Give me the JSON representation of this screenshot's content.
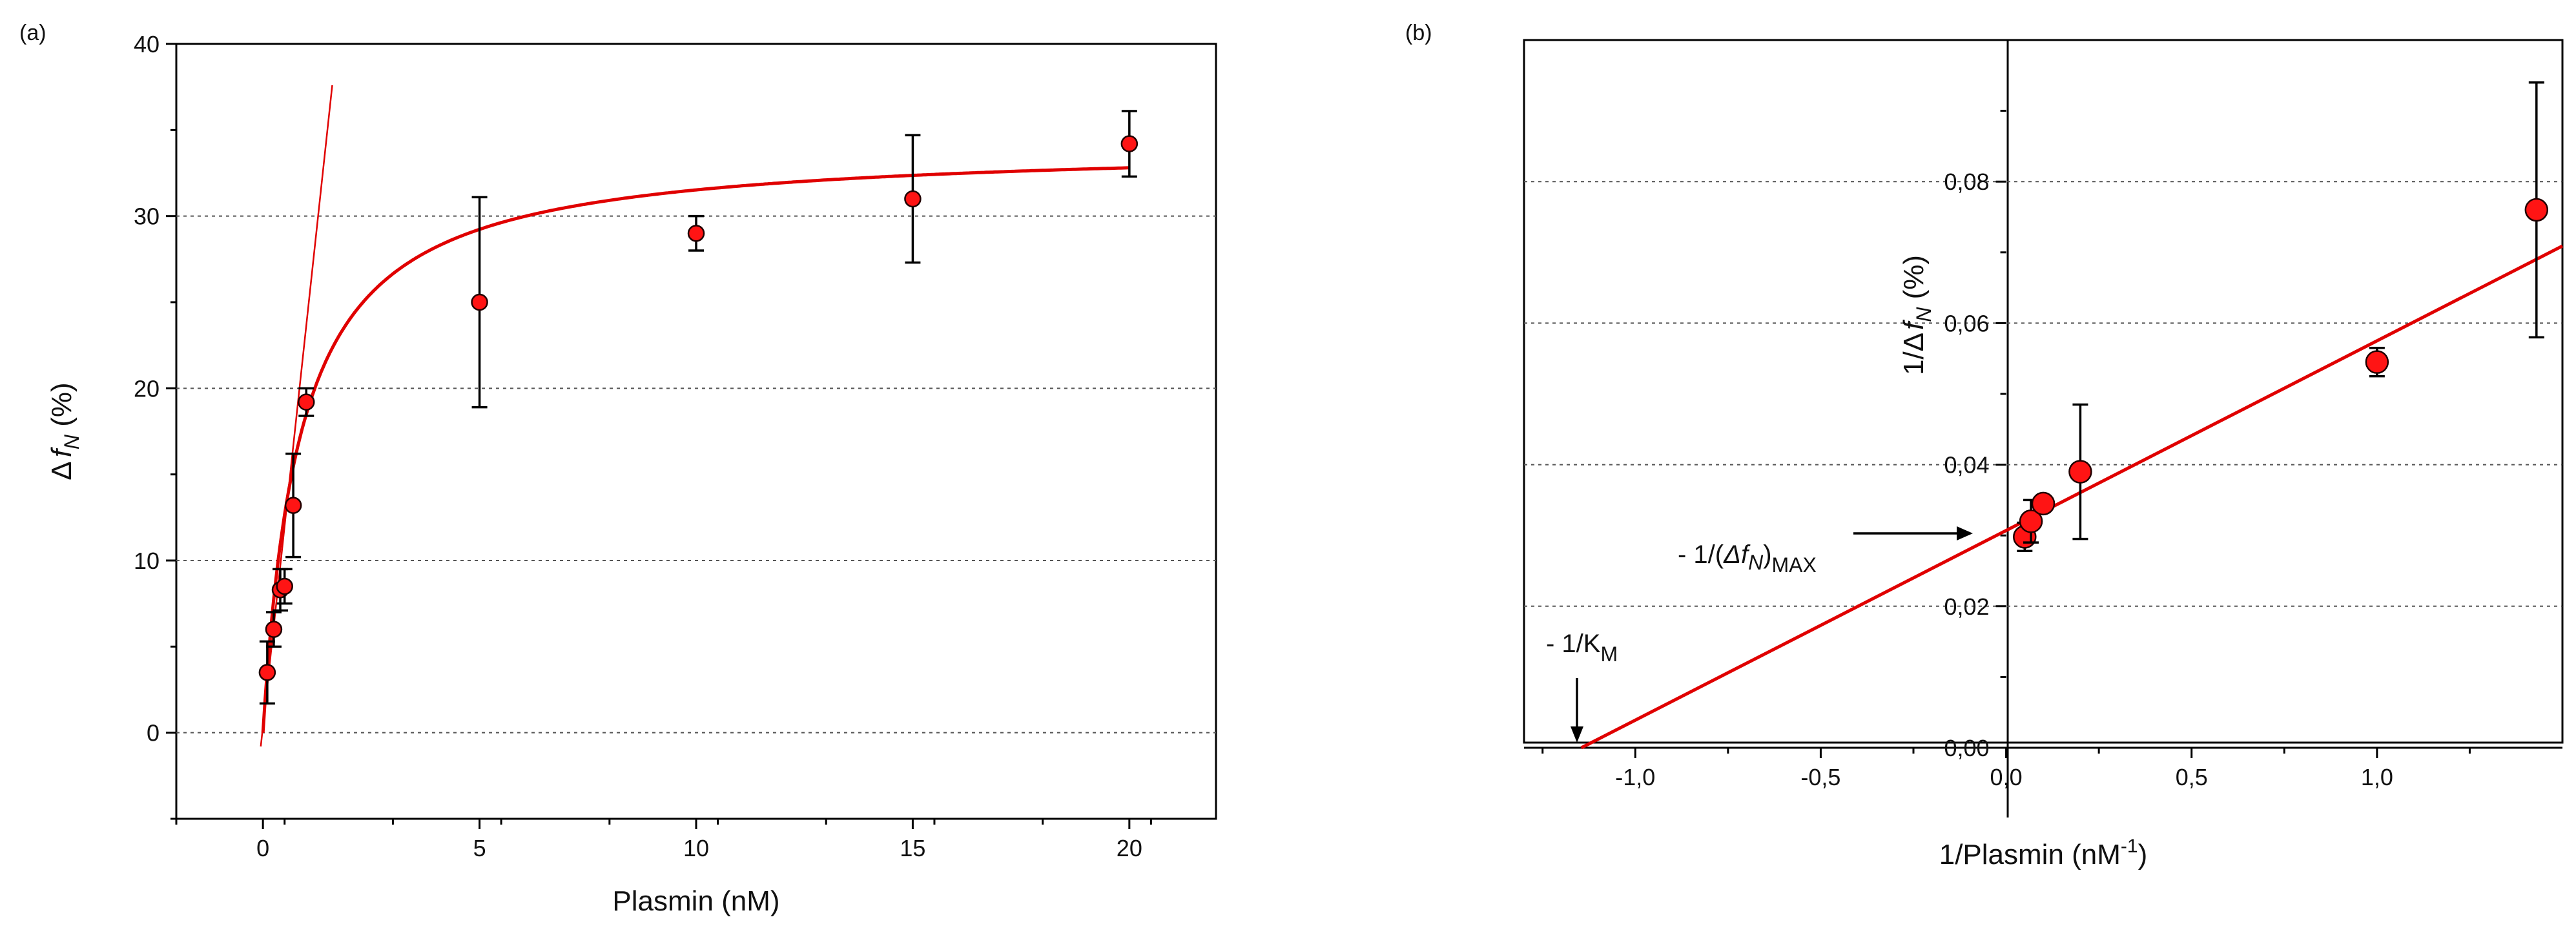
{
  "chart_data": [
    {
      "panel": "(a)",
      "type": "scatter",
      "xlabel": "Plasmin (nM)",
      "ylabel_prefix": "Δ",
      "ylabel_var": "f",
      "ylabel_sub": "N",
      "ylabel_suffix": " (%)",
      "xlim": [
        -2,
        22
      ],
      "ylim": [
        -5,
        40
      ],
      "xticks": [
        0,
        5,
        10,
        15,
        20
      ],
      "yticks": [
        0,
        10,
        20,
        30,
        40
      ],
      "gridlines_y": [
        10,
        20,
        30
      ],
      "points": [
        {
          "x": 0.1,
          "y": 3.5,
          "err": 1.8
        },
        {
          "x": 0.25,
          "y": 6.0,
          "err": 1.0
        },
        {
          "x": 0.4,
          "y": 8.3,
          "err": 1.2
        },
        {
          "x": 0.5,
          "y": 8.5,
          "err": 1.0
        },
        {
          "x": 0.7,
          "y": 13.2,
          "err": 3.0
        },
        {
          "x": 1.0,
          "y": 19.2,
          "err": 0.8
        },
        {
          "x": 5.0,
          "y": 25.0,
          "err": 6.1
        },
        {
          "x": 10.0,
          "y": 29.0,
          "err": 1.0
        },
        {
          "x": 15.0,
          "y": 31.0,
          "err": 3.7
        },
        {
          "x": 20.0,
          "y": 34.2,
          "err": 1.9
        }
      ],
      "fit_curve": {
        "model": "michaelis-menten",
        "vmax": 34.2,
        "km": 0.85
      },
      "tangent_line": {
        "x_start": -0.05,
        "y_start": -0.8,
        "x_end": 1.6,
        "y_end": 37.6
      }
    },
    {
      "panel": "(b)",
      "type": "scatter",
      "xlabel_main": "1/Plasmin (nM",
      "xlabel_sup": "-1",
      "xlabel_end": ")",
      "ylabel_prefix": "1/Δ",
      "ylabel_var": "f",
      "ylabel_sub": "N",
      "ylabel_suffix": " (%)",
      "xlim": [
        -1.3,
        1.5
      ],
      "ylim": [
        0.0,
        0.1
      ],
      "xticks": [
        -1.0,
        -0.5,
        0.0,
        0.5,
        1.0
      ],
      "xtick_labels": [
        "-1,0",
        "-0,5",
        "0,0",
        "0,5",
        "1,0"
      ],
      "yticks": [
        0.0,
        0.02,
        0.04,
        0.06,
        0.08
      ],
      "ytick_labels": [
        "0,00",
        "0,02",
        "0,04",
        "0,06",
        "0,08"
      ],
      "gridlines_y": [
        0.02,
        0.04,
        0.06,
        0.08
      ],
      "points": [
        {
          "x": 0.05,
          "y": 0.0298,
          "err": 0.002
        },
        {
          "x": 0.067,
          "y": 0.032,
          "err": 0.003
        },
        {
          "x": 0.1,
          "y": 0.0345,
          "err": 0.001
        },
        {
          "x": 0.2,
          "y": 0.039,
          "err": 0.0095
        },
        {
          "x": 1.0,
          "y": 0.0545,
          "err": 0.002
        },
        {
          "x": 1.43,
          "y": 0.076,
          "err": 0.018
        }
      ],
      "fit_line": {
        "slope": 0.0268,
        "intercept": 0.0307
      },
      "annotations": {
        "ymax_label_main": "- 1/(",
        "ymax_label_var": "Δf",
        "ymax_label_sub1": "N",
        "ymax_label_close": ")",
        "ymax_label_sub2": "MAX",
        "km_label_main": "- 1/K",
        "km_label_sub": "M"
      }
    }
  ]
}
